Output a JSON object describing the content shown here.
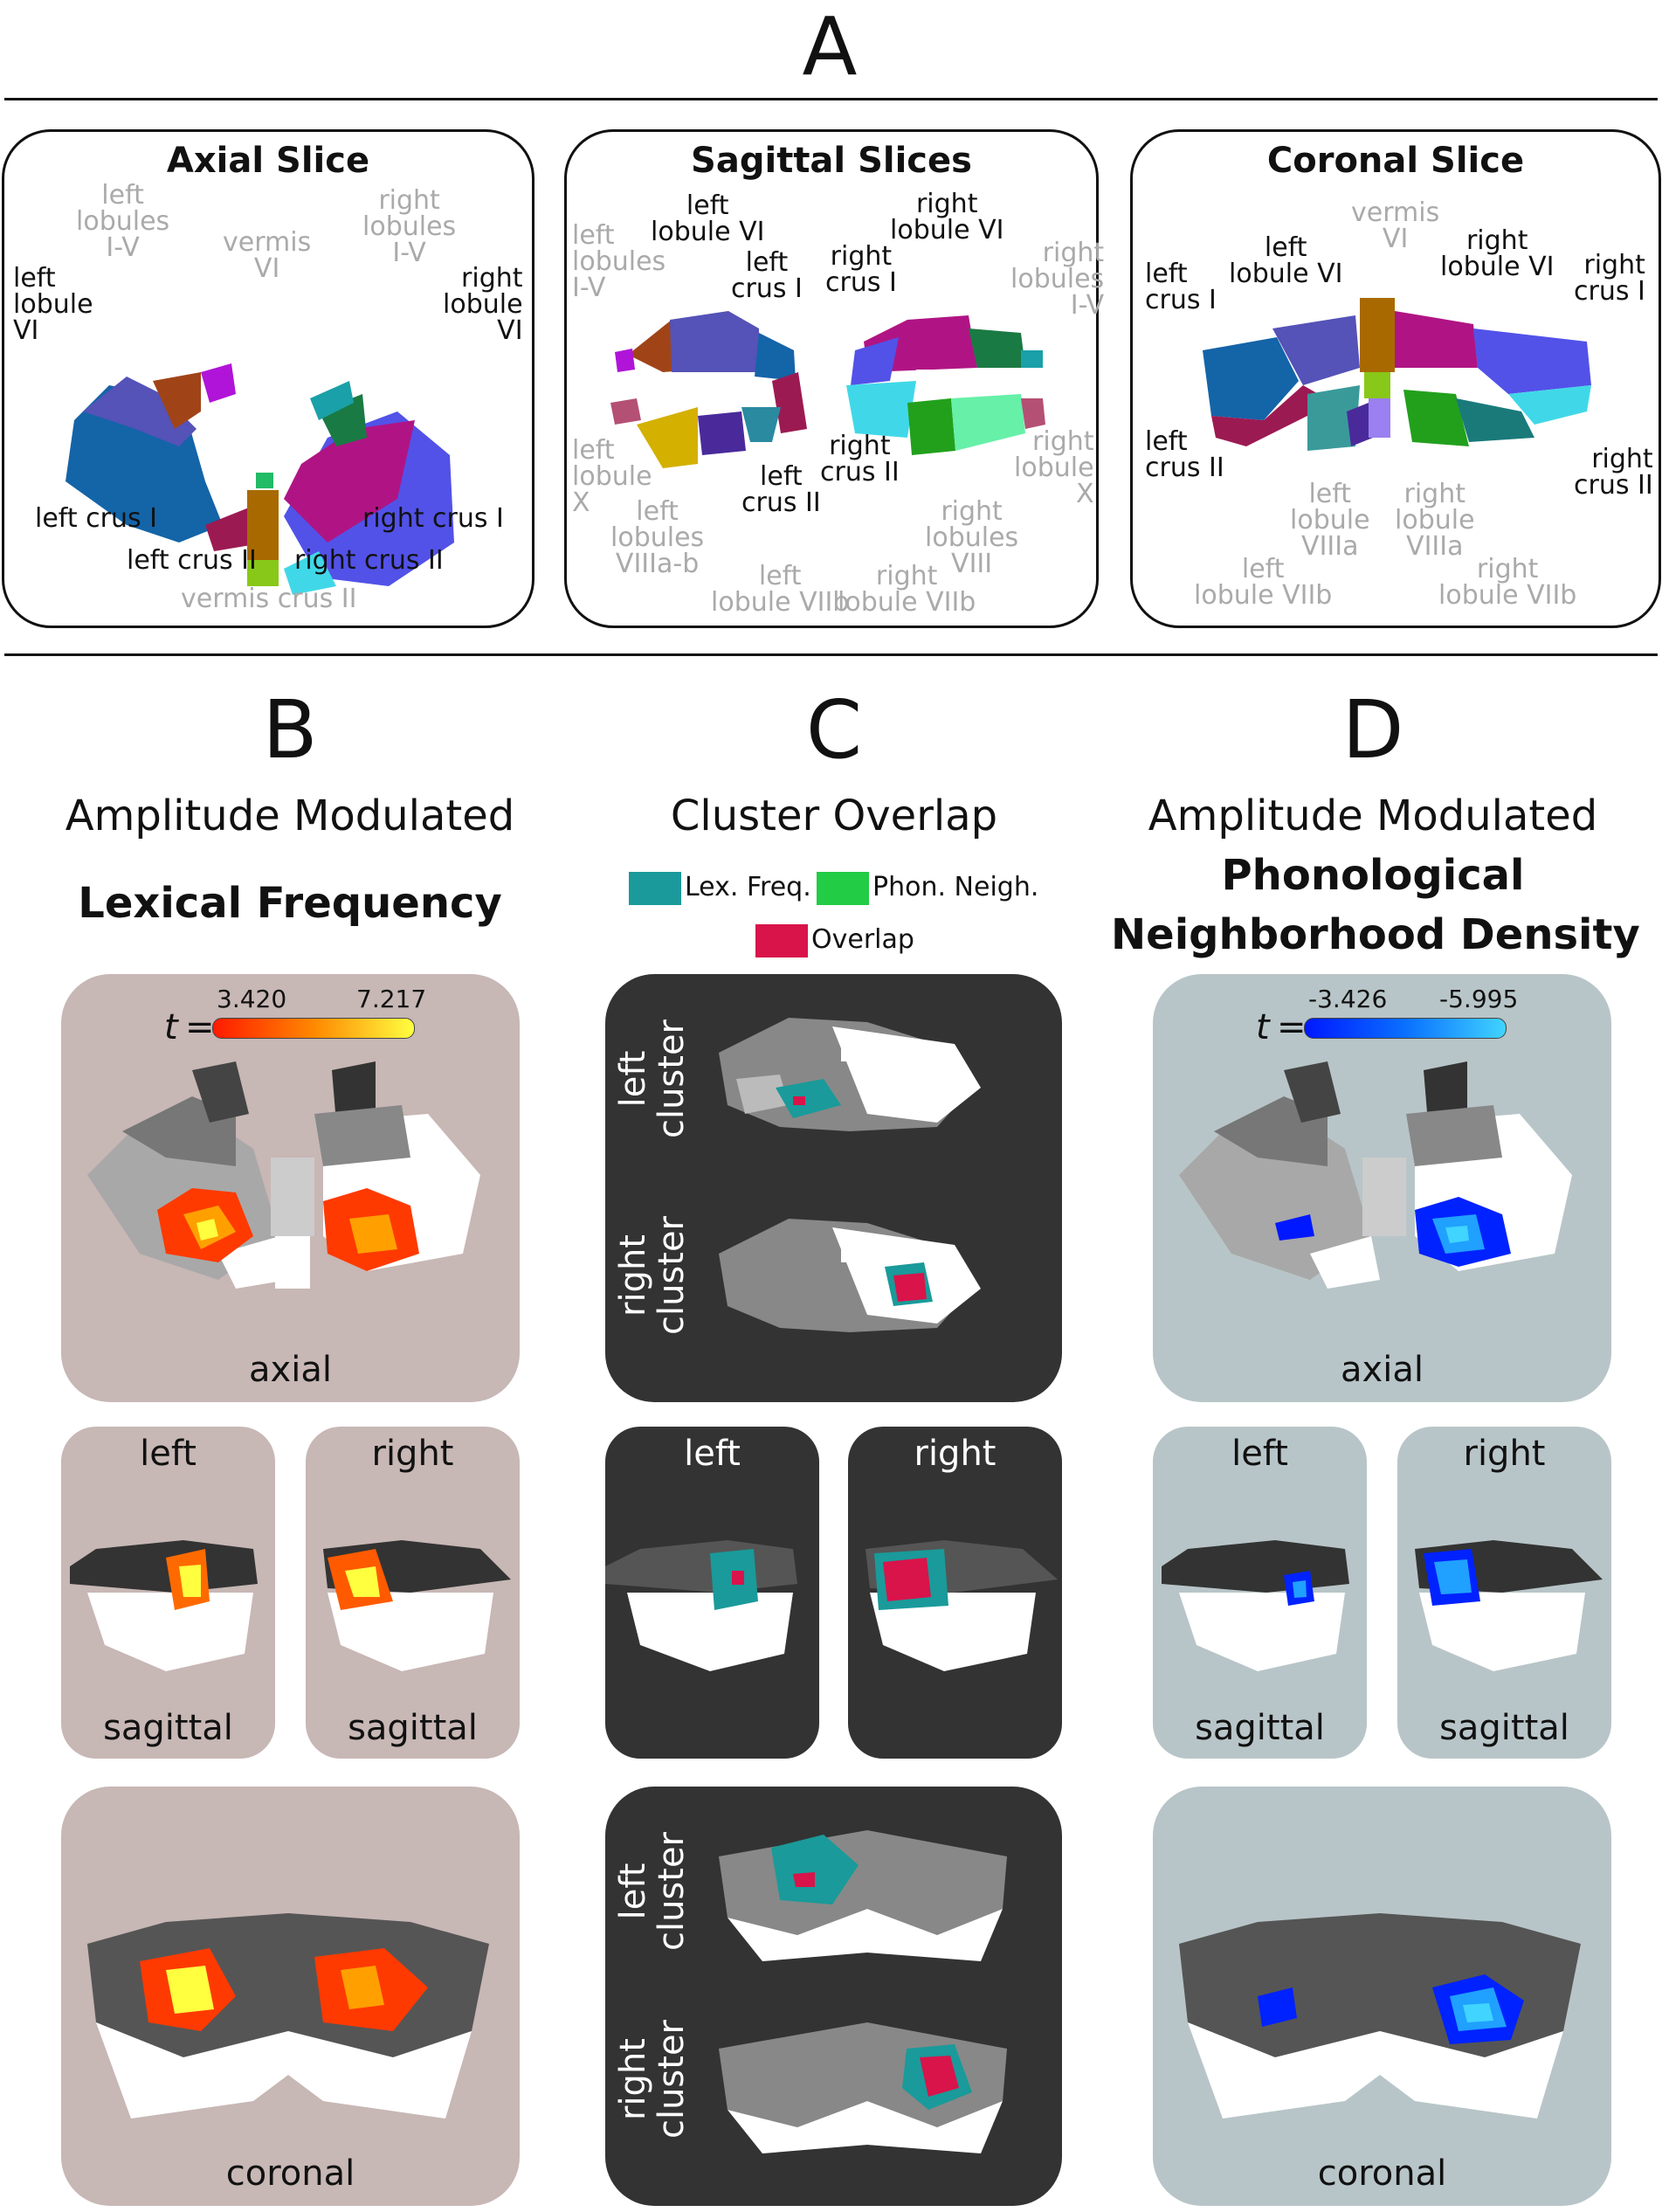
{
  "panel_a": {
    "letter": "A",
    "axial": {
      "title": "Axial Slice",
      "labels": {
        "left_lobules": "left\nlobules\nI-V",
        "vermis_vi": "vermis\nVI",
        "right_lobules": "right\nlobules\nI-V",
        "left_lobule_vi": "left\nlobule\nVI",
        "right_lobule_vi": "right\nlobule\nVI",
        "left_crus_i": "left crus I",
        "right_crus_i": "right crus I",
        "left_crus_ii": "left crus II",
        "right_crus_ii": "right crus II",
        "vermis_crus_ii": "vermis crus II"
      }
    },
    "sagittal": {
      "title": "Sagittal Slices",
      "labels": {
        "left_lobules": "left\nlobules\nI-V",
        "left_lobule_vi": "left\nlobule VI",
        "left_crus_i": "left\ncrus I",
        "left_lobule_x": "left\nlobule\nX",
        "left_lobules_viii": "left\nlobules\nVIIIa-b",
        "left_crus_ii": "left\ncrus II",
        "left_lobule_viib": "left\nlobule VIIb",
        "right_lobule_vi": "right\nlobule VI",
        "right_crus_i": "right\ncrus I",
        "right_lobules": "right\nlobules\nI-V",
        "right_crus_ii": "right\ncrus II",
        "right_lobule_x": "right\nlobule\nX",
        "right_lobules_viii": "right\nlobules\nVIII",
        "right_lobule_viib": "right\nlobule VIIb"
      }
    },
    "coronal": {
      "title": "Coronal Slice",
      "labels": {
        "left_crus_i": "left\ncrus I",
        "left_lobule_vi": "left\nlobule VI",
        "vermis_vi": "vermis\nVI",
        "right_lobule_vi": "right\nlobule VI",
        "right_crus_i": "right\ncrus I",
        "left_crus_ii": "left\ncrus II",
        "right_crus_ii": "right\ncrus II",
        "left_lobule_viiia": "left\nlobule\nVIIIa",
        "right_lobule_viiia": "right\nlobule\nVIIIa",
        "left_lobule_viib": "left\nlobule VIIb",
        "right_lobule_viib": "right\nlobule VIIb"
      }
    }
  },
  "panel_b": {
    "letter": "B",
    "subtitle": "Amplitude Modulated",
    "title": "Lexical Frequency",
    "colorbar": {
      "t_label": "t",
      "eq": "=",
      "min": "3.420",
      "max": "7.217"
    },
    "axial_label": "axial",
    "left_label": "left",
    "right_label": "right",
    "sagittal_label": "sagittal",
    "coronal_label": "coronal"
  },
  "panel_c": {
    "letter": "C",
    "subtitle": "Cluster Overlap",
    "legend": [
      {
        "label": "Lex. Freq.",
        "color": "#1a9a9a"
      },
      {
        "label": "Phon. Neigh.",
        "color": "#22cc44"
      },
      {
        "label": "Overlap",
        "color": "#d8144a"
      }
    ],
    "left_cluster": "left\ncluster",
    "right_cluster": "right\ncluster",
    "left_label": "left",
    "right_label": "right"
  },
  "panel_d": {
    "letter": "D",
    "subtitle": "Amplitude Modulated",
    "title_line1": "Phonological",
    "title_line2": "Neighborhood Density",
    "colorbar": {
      "t_label": "t",
      "eq": "=",
      "min": "-3.426",
      "max": "-5.995"
    },
    "axial_label": "axial",
    "left_label": "left",
    "right_label": "right",
    "sagittal_label": "sagittal",
    "coronal_label": "coronal"
  },
  "colors": {
    "pink_panel": "#c7b7b5",
    "dark_panel": "#333333",
    "blue_panel": "#b8c5c8",
    "hot_low": "#ff2a00",
    "hot_high": "#ffff40",
    "cold_low": "#0022ff",
    "cold_high": "#33ccff"
  }
}
